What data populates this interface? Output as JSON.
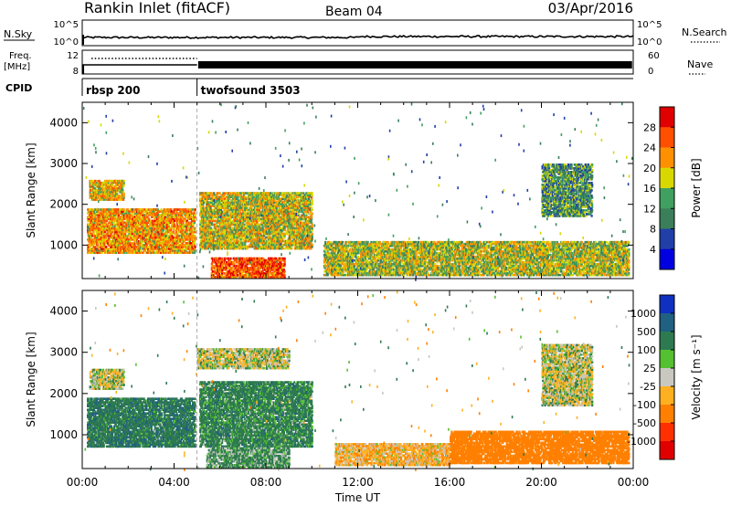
{
  "header": {
    "title": "Rankin Inlet (fitACF)",
    "beam": "Beam 04",
    "date": "03/Apr/2016"
  },
  "nsky_panel": {
    "left_label": "N.Sky",
    "left_ticks": [
      "10^5",
      "10^0"
    ],
    "right_label": "N.Search",
    "right_ticks": [
      "10^5",
      "10^0"
    ],
    "right_line_style": "dotted"
  },
  "freq_panel": {
    "left_label_1": "Freq.",
    "left_label_2": "[MHz]",
    "left_ticks": [
      "12",
      "8"
    ],
    "right_label": "Nave",
    "right_ticks": [
      "60",
      "0"
    ],
    "right_line_style": "dotted"
  },
  "cpid_panel": {
    "label": "CPID",
    "segments": [
      {
        "name": "rbsp 200",
        "start_hour": 0
      },
      {
        "name": "twofsound 3503",
        "start_hour": 5
      }
    ]
  },
  "colors": {
    "power_scale": [
      "#0000e0",
      "#2040a8",
      "#3a7f5a",
      "#40a060",
      "#d8d800",
      "#ff9000",
      "#ff5000",
      "#e00000"
    ],
    "velocity_scale": [
      "#1030c0",
      "#206080",
      "#2e7a50",
      "#55c030",
      "#c8c8c0",
      "#ffb020",
      "#ff8000",
      "#ff3000",
      "#e00000"
    ]
  },
  "chart_data": [
    {
      "type": "heatmap",
      "title": "",
      "xlabel": "",
      "ylabel": "Slant Range [km]",
      "xlim": [
        0,
        24
      ],
      "ylim": [
        180,
        4500
      ],
      "yticks": [
        "1000",
        "2000",
        "3000",
        "4000"
      ],
      "colorbar": {
        "label": "Power [dB]",
        "ticks": [
          "4",
          "8",
          "12",
          "16",
          "20",
          "24",
          "28"
        ]
      },
      "regions": [
        {
          "x": [
            0.2,
            4.9
          ],
          "y": [
            800,
            1900
          ],
          "value": 22
        },
        {
          "x": [
            5.1,
            10.0
          ],
          "y": [
            900,
            2300
          ],
          "value": 18
        },
        {
          "x": [
            5.6,
            8.8
          ],
          "y": [
            200,
            700
          ],
          "value": 26
        },
        {
          "x": [
            10.5,
            23.8
          ],
          "y": [
            250,
            1100
          ],
          "value": 17
        },
        {
          "x": [
            20.0,
            22.2
          ],
          "y": [
            1700,
            3000
          ],
          "value": 12
        },
        {
          "x": [
            0.3,
            1.8
          ],
          "y": [
            2100,
            2600
          ],
          "value": 20
        }
      ]
    },
    {
      "type": "heatmap",
      "title": "",
      "xlabel": "Time UT",
      "ylabel": "Slant Range [km]",
      "xlim": [
        0,
        24
      ],
      "ylim": [
        180,
        4500
      ],
      "xticks": [
        "00:00",
        "04:00",
        "08:00",
        "12:00",
        "16:00",
        "20:00",
        "00:00"
      ],
      "yticks": [
        "1000",
        "2000",
        "3000",
        "4000"
      ],
      "colorbar": {
        "label": "Velocity [m s⁻¹]",
        "ticks": [
          "1000",
          "500",
          "100",
          "25",
          "-25",
          "-100",
          "-500",
          "-1000"
        ]
      },
      "regions": [
        {
          "x": [
            0.2,
            4.9
          ],
          "y": [
            700,
            1900
          ],
          "value": 150
        },
        {
          "x": [
            5.1,
            10.0
          ],
          "y": [
            700,
            2300
          ],
          "value": 120
        },
        {
          "x": [
            5.4,
            9.0
          ],
          "y": [
            200,
            700
          ],
          "value": 80
        },
        {
          "x": [
            11.0,
            16.0
          ],
          "y": [
            250,
            800
          ],
          "value": -60
        },
        {
          "x": [
            16.0,
            23.8
          ],
          "y": [
            300,
            1100
          ],
          "value": -200
        },
        {
          "x": [
            20.0,
            22.2
          ],
          "y": [
            1700,
            3200
          ],
          "value": 0
        },
        {
          "x": [
            0.3,
            1.8
          ],
          "y": [
            2100,
            2600
          ],
          "value": 0
        },
        {
          "x": [
            5.0,
            9.0
          ],
          "y": [
            2600,
            3100
          ],
          "value": 0
        }
      ]
    }
  ]
}
